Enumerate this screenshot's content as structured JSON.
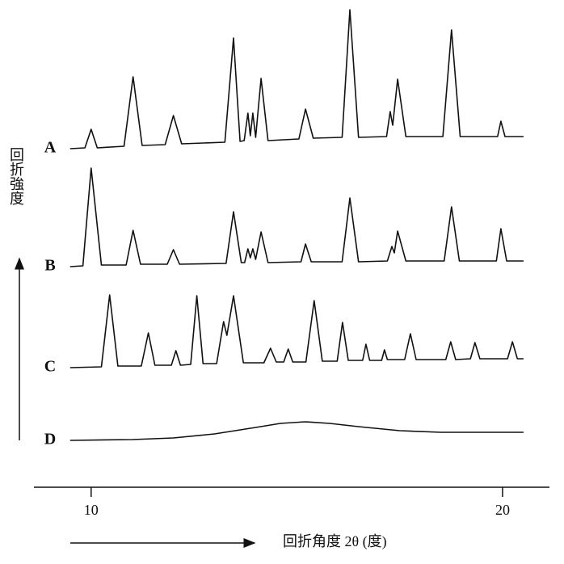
{
  "chart_data": {
    "type": "line",
    "x_label": "回折角度 2θ (度)",
    "y_label": "回折強度",
    "xlim": [
      8.61,
      21.14
    ],
    "xticks": [
      10,
      20
    ],
    "color": "#111111",
    "series": [
      {
        "name": "A",
        "x": [
          9.49,
          9.85,
          10.0,
          10.15,
          10.8,
          11.02,
          11.24,
          11.8,
          12.0,
          12.2,
          13.25,
          13.46,
          13.62,
          13.72,
          13.81,
          13.87,
          13.93,
          14.0,
          14.13,
          14.3,
          15.05,
          15.21,
          15.4,
          16.1,
          16.29,
          16.5,
          17.18,
          17.27,
          17.33,
          17.45,
          17.65,
          18.55,
          18.76,
          18.97,
          19.88,
          19.96,
          20.06,
          20.51
        ],
        "values": [
          6,
          7,
          30,
          7,
          9,
          95,
          10,
          11,
          47,
          12,
          14,
          143,
          15,
          16,
          50,
          22,
          50,
          20,
          93,
          16,
          18,
          55,
          19,
          20,
          178,
          20,
          21,
          52,
          35,
          92,
          21,
          21,
          153,
          21,
          21,
          40,
          21,
          21
        ]
      },
      {
        "name": "B",
        "x": [
          9.49,
          9.8,
          10.0,
          10.25,
          10.85,
          11.02,
          11.2,
          11.85,
          12.0,
          12.15,
          13.28,
          13.46,
          13.65,
          13.73,
          13.81,
          13.87,
          13.93,
          14.0,
          14.13,
          14.3,
          15.1,
          15.21,
          15.35,
          16.1,
          16.29,
          16.5,
          17.2,
          17.31,
          17.37,
          17.45,
          17.65,
          18.58,
          18.76,
          18.95,
          19.85,
          19.96,
          20.1,
          20.51
        ],
        "values": [
          5,
          6,
          127,
          7,
          7,
          50,
          8,
          8,
          26,
          8,
          9,
          73,
          10,
          10,
          27,
          16,
          27,
          14,
          48,
          10,
          11,
          33,
          11,
          11,
          90,
          11,
          12,
          30,
          22,
          49,
          12,
          12,
          79,
          12,
          12,
          52,
          12,
          12
        ]
      },
      {
        "name": "C",
        "x": [
          9.49,
          10.25,
          10.45,
          10.65,
          11.22,
          11.39,
          11.55,
          11.95,
          12.06,
          12.17,
          12.42,
          12.57,
          12.72,
          13.05,
          13.22,
          13.3,
          13.46,
          13.7,
          14.2,
          14.36,
          14.5,
          14.68,
          14.79,
          14.9,
          15.22,
          15.42,
          15.62,
          15.98,
          16.11,
          16.25,
          16.6,
          16.68,
          16.77,
          17.06,
          17.13,
          17.2,
          17.62,
          17.76,
          17.9,
          18.62,
          18.74,
          18.86,
          19.22,
          19.33,
          19.45,
          20.12,
          20.24,
          20.36,
          20.51
        ],
        "values": [
          5,
          6,
          95,
          7,
          7,
          48,
          8,
          8,
          26,
          8,
          9,
          94,
          10,
          10,
          62,
          45,
          94,
          11,
          11,
          29,
          12,
          12,
          28,
          12,
          12,
          88,
          13,
          13,
          61,
          14,
          14,
          34,
          14,
          14,
          27,
          15,
          15,
          47,
          15,
          15,
          37,
          15,
          16,
          36,
          16,
          16,
          37,
          16,
          16
        ]
      },
      {
        "name": "D",
        "x": [
          9.49,
          11,
          12,
          13,
          14,
          14.6,
          15.2,
          15.8,
          16.5,
          17.5,
          18.5,
          19.5,
          20.51
        ],
        "values": [
          5,
          6,
          8,
          13,
          21,
          26,
          28,
          26,
          22,
          17,
          15,
          15,
          15
        ]
      }
    ]
  }
}
